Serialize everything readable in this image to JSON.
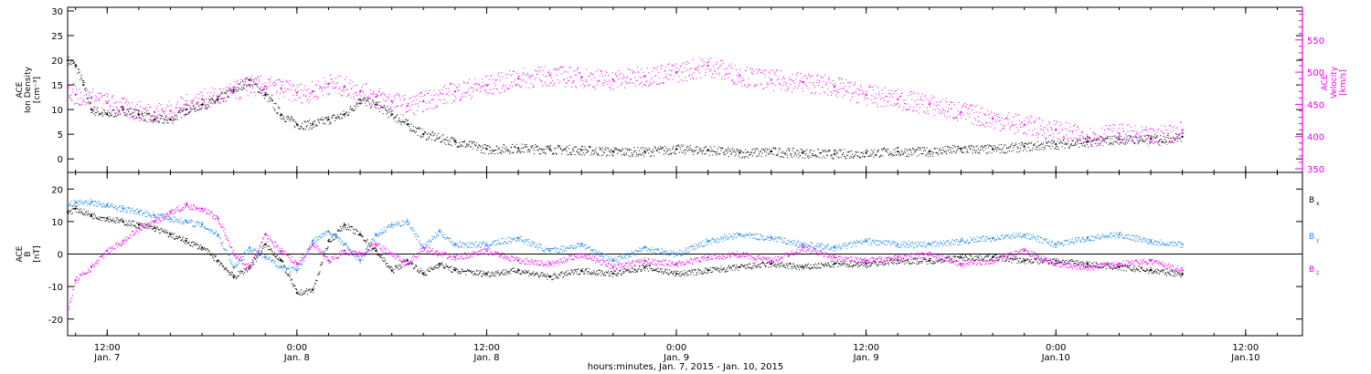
{
  "chart_data": {
    "type": "scatter",
    "xlabel": "hours:minutes, Jan. 7, 2015 - Jan. 10, 2015",
    "x_ticks": [
      {
        "hour": 12,
        "time": "12:00",
        "date": "Jan. 7"
      },
      {
        "hour": 24,
        "time": "0:00",
        "date": "Jan. 8"
      },
      {
        "hour": 36,
        "time": "12:00",
        "date": "Jan. 8"
      },
      {
        "hour": 48,
        "time": "0:00",
        "date": "Jan. 9"
      },
      {
        "hour": 60,
        "time": "12:00",
        "date": "Jan. 9"
      },
      {
        "hour": 72,
        "time": "0:00",
        "date": "Jan.10"
      },
      {
        "hour": 84,
        "time": "12:00",
        "date": "Jan.10"
      }
    ],
    "panels": [
      {
        "id": "plasma",
        "left_axis": {
          "label_lines": [
            "ACE",
            "Ion Density",
            "[cm⁻³]"
          ],
          "range": [
            -2,
            30
          ],
          "ticks": [
            0,
            5,
            10,
            15,
            20,
            25,
            30
          ],
          "color": "#000000"
        },
        "right_axis": {
          "label_lines": [
            "ACE",
            "Velocity",
            "[km/s]"
          ],
          "range": [
            350,
            595
          ],
          "ticks": [
            350,
            400,
            450,
            500,
            550
          ],
          "color": "#ee00ee"
        },
        "series": [
          {
            "color": "#000000",
            "axis": "left",
            "x": [
              9.5,
              10,
              10.5,
              11,
              12,
              13,
              14,
              15,
              16,
              17,
              18,
              19,
              20,
              21,
              22,
              23,
              24,
              25,
              26,
              27,
              28,
              29,
              30,
              31,
              32,
              34,
              36,
              38,
              40,
              42,
              44,
              46,
              48,
              50,
              52,
              54,
              56,
              58,
              60,
              62,
              64,
              66,
              68,
              70,
              72,
              74,
              76,
              78,
              80
            ],
            "y": [
              20,
              19,
              15,
              10,
              9,
              10,
              9,
              8,
              8,
              10,
              11,
              12,
              14,
              16,
              13,
              9,
              7,
              7,
              8,
              9,
              12,
              11,
              9,
              7,
              5,
              3.5,
              2,
              2.2,
              2,
              1.8,
              1.5,
              1.5,
              2,
              1.8,
              1.2,
              1.5,
              1.2,
              1,
              1.2,
              1.5,
              1.5,
              2,
              2,
              2.5,
              3,
              3.5,
              4,
              4,
              4.5
            ]
          },
          {
            "color": "#ee00ee",
            "axis": "right",
            "x": [
              9.5,
              10,
              11,
              12,
              13,
              14,
              15,
              16,
              17,
              18,
              19,
              20,
              21,
              22,
              23,
              24,
              25,
              26,
              27,
              28,
              29,
              30,
              31,
              32,
              34,
              36,
              38,
              40,
              42,
              44,
              46,
              48,
              50,
              52,
              54,
              56,
              58,
              60,
              62,
              64,
              66,
              68,
              70,
              72,
              74,
              76,
              78,
              80
            ],
            "y": [
              475,
              465,
              460,
              452,
              445,
              440,
              438,
              440,
              450,
              458,
              462,
              470,
              480,
              478,
              475,
              468,
              470,
              482,
              478,
              470,
              462,
              455,
              448,
              455,
              470,
              480,
              490,
              495,
              492,
              488,
              494,
              500,
              510,
              495,
              488,
              485,
              478,
              465,
              458,
              450,
              438,
              428,
              418,
              410,
              400,
              405,
              398,
              410
            ]
          }
        ]
      },
      {
        "id": "magnetic",
        "left_axis": {
          "label_lines": [
            "ACE",
            "B",
            "[nT]"
          ],
          "range": [
            -24,
            24
          ],
          "ticks": [
            -20,
            -10,
            0,
            10,
            20
          ],
          "color": "#000000"
        },
        "zero_line": true,
        "legend": [
          {
            "label": "B",
            "sub": "x",
            "color": "#000000"
          },
          {
            "label": "B",
            "sub": "y",
            "color": "#1e88e5"
          },
          {
            "label": "B",
            "sub": "z",
            "color": "#ee00ee"
          }
        ],
        "series": [
          {
            "name": "Bx",
            "color": "#000000",
            "x": [
              9.5,
              10,
              11,
              12,
              13,
              14,
              15,
              16,
              17,
              18,
              19,
              20,
              21,
              22,
              23,
              24,
              25,
              26,
              27,
              28,
              29,
              30,
              31,
              32,
              33,
              34,
              36,
              38,
              40,
              42,
              44,
              46,
              48,
              50,
              52,
              54,
              56,
              58,
              60,
              62,
              64,
              66,
              68,
              70,
              72,
              74,
              76,
              78,
              80
            ],
            "y": [
              13,
              14,
              12,
              11,
              10,
              9,
              8,
              6,
              4,
              2,
              -2,
              -7,
              -4,
              3,
              -2,
              -12,
              -11,
              4,
              9,
              6,
              1,
              -5,
              -2,
              -6,
              -3,
              -5,
              -6,
              -5,
              -7,
              -5,
              -6,
              -4,
              -6,
              -5,
              -4,
              -3,
              -4,
              -3,
              -3,
              -2,
              -2,
              -1,
              -1,
              -2,
              -2,
              -3,
              -4,
              -5,
              -6
            ]
          },
          {
            "name": "By",
            "color": "#1e88e5",
            "x": [
              9.5,
              10,
              11,
              12,
              13,
              14,
              15,
              16,
              17,
              18,
              19,
              20,
              21,
              22,
              23,
              24,
              25,
              26,
              27,
              28,
              29,
              30,
              31,
              32,
              33,
              34,
              36,
              38,
              40,
              42,
              44,
              46,
              48,
              50,
              52,
              54,
              56,
              58,
              60,
              62,
              64,
              66,
              68,
              70,
              72,
              74,
              76,
              78,
              80
            ],
            "y": [
              15,
              16,
              16,
              15,
              14,
              13,
              12,
              11,
              10,
              9,
              6,
              -4,
              2,
              -1,
              -4,
              -5,
              4,
              7,
              3,
              -2,
              6,
              9,
              10,
              2,
              7,
              3,
              3,
              5,
              1,
              3,
              -2,
              2,
              0,
              4,
              6,
              5,
              3,
              2,
              4,
              3,
              3,
              4,
              5,
              6,
              3,
              5,
              6,
              4,
              3
            ]
          },
          {
            "name": "Bz",
            "color": "#ee00ee",
            "x": [
              9.5,
              10,
              11,
              12,
              13,
              14,
              15,
              16,
              17,
              18,
              19,
              20,
              21,
              22,
              23,
              24,
              25,
              26,
              27,
              28,
              29,
              30,
              31,
              32,
              33,
              34,
              36,
              38,
              40,
              42,
              44,
              46,
              48,
              50,
              52,
              54,
              56,
              58,
              60,
              62,
              64,
              66,
              68,
              70,
              72,
              74,
              76,
              78,
              80
            ],
            "y": [
              -17,
              -8,
              -4,
              1,
              4,
              8,
              10,
              13,
              15,
              14,
              11,
              0,
              -4,
              6,
              1,
              -3,
              3,
              -2,
              1,
              0,
              3,
              0,
              -3,
              2,
              0,
              -1,
              1,
              -2,
              -3,
              0,
              -4,
              -2,
              -3,
              -1,
              0,
              -2,
              2,
              -1,
              -2,
              -1,
              0,
              -3,
              -2,
              1,
              -3,
              -4,
              -3,
              -2,
              -5
            ]
          }
        ]
      }
    ]
  }
}
